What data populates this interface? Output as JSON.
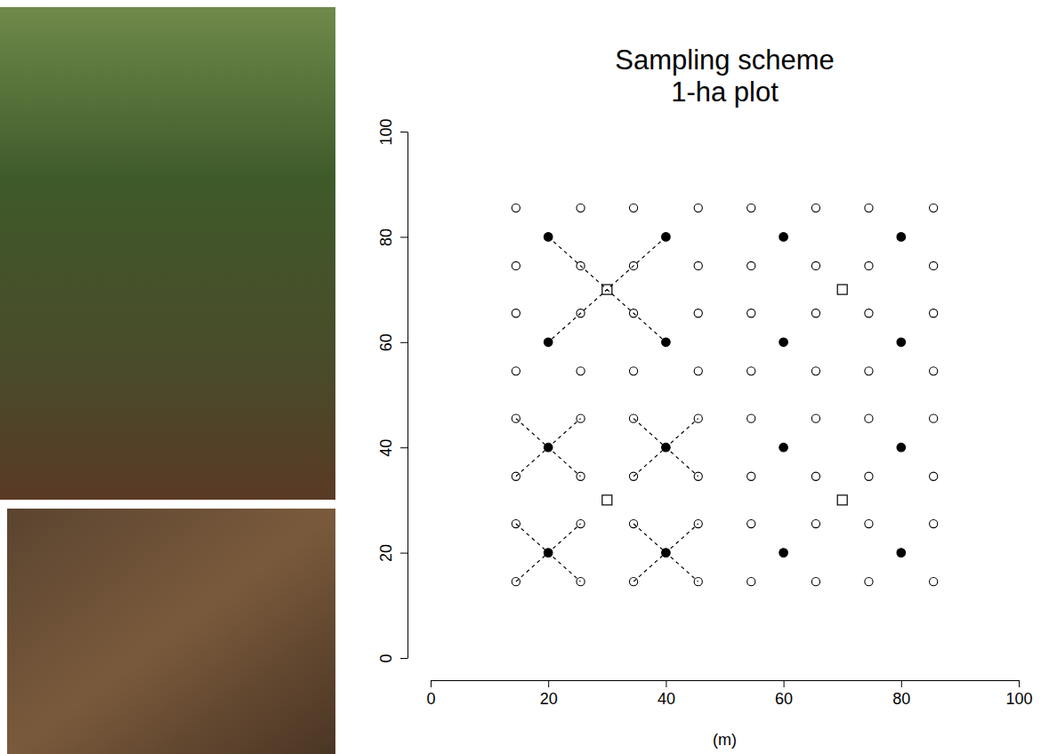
{
  "chart_data": {
    "type": "scatter",
    "title": "Sampling scheme",
    "subtitle": "1-ha plot",
    "x_label": "(m)",
    "xlim": [
      0,
      100
    ],
    "xticks": [
      0,
      20,
      40,
      60,
      80,
      100
    ],
    "ylim": [
      0,
      100
    ],
    "yticks": [
      0,
      20,
      40,
      60,
      80,
      100
    ],
    "grid": false,
    "series": [
      {
        "type": "line",
        "line_style": "dashed",
        "color": "#000000",
        "x": [
          20,
          40,
          null,
          40,
          20,
          null,
          14.5,
          25.5,
          null,
          14.5,
          25.5,
          null,
          34.5,
          45.5,
          null,
          34.5,
          45.5,
          null,
          14.5,
          25.5,
          null,
          14.5,
          25.5,
          null,
          34.5,
          45.5,
          null,
          34.5,
          45.5
        ],
        "values": [
          80,
          60,
          null,
          80,
          60,
          null,
          45.5,
          34.5,
          null,
          34.5,
          45.5,
          null,
          45.5,
          34.5,
          null,
          34.5,
          45.5,
          null,
          25.5,
          14.5,
          null,
          14.5,
          25.5,
          null,
          25.5,
          14.5,
          null,
          14.5,
          25.5
        ]
      },
      {
        "type": "scatter",
        "marker": "circle-open",
        "color": "#000000",
        "x": [
          14.5,
          25.5,
          34.5,
          45.5,
          54.5,
          65.5,
          74.5,
          85.5,
          14.5,
          25.5,
          34.5,
          45.5,
          54.5,
          65.5,
          74.5,
          85.5,
          14.5,
          25.5,
          34.5,
          45.5,
          54.5,
          65.5,
          74.5,
          85.5,
          14.5,
          25.5,
          34.5,
          45.5,
          54.5,
          65.5,
          74.5,
          85.5,
          14.5,
          25.5,
          34.5,
          45.5,
          54.5,
          65.5,
          74.5,
          85.5,
          14.5,
          25.5,
          34.5,
          45.5,
          54.5,
          65.5,
          74.5,
          85.5,
          14.5,
          25.5,
          34.5,
          45.5,
          54.5,
          65.5,
          74.5,
          85.5,
          14.5,
          25.5,
          34.5,
          45.5,
          54.5,
          65.5,
          74.5,
          85.5
        ],
        "values": [
          85.5,
          85.5,
          85.5,
          85.5,
          85.5,
          85.5,
          85.5,
          85.5,
          74.5,
          74.5,
          74.5,
          74.5,
          74.5,
          74.5,
          74.5,
          74.5,
          65.5,
          65.5,
          65.5,
          65.5,
          65.5,
          65.5,
          65.5,
          65.5,
          54.5,
          54.5,
          54.5,
          54.5,
          54.5,
          54.5,
          54.5,
          54.5,
          45.5,
          45.5,
          45.5,
          45.5,
          45.5,
          45.5,
          45.5,
          45.5,
          34.5,
          34.5,
          34.5,
          34.5,
          34.5,
          34.5,
          34.5,
          34.5,
          25.5,
          25.5,
          25.5,
          25.5,
          25.5,
          25.5,
          25.5,
          25.5,
          14.5,
          14.5,
          14.5,
          14.5,
          14.5,
          14.5,
          14.5,
          14.5
        ]
      },
      {
        "type": "scatter",
        "marker": "circle",
        "color": "#000000",
        "x": [
          20,
          40,
          60,
          80,
          20,
          40,
          60,
          80,
          20,
          40,
          60,
          80,
          20,
          40,
          60,
          80
        ],
        "values": [
          80,
          80,
          80,
          80,
          60,
          60,
          60,
          60,
          40,
          40,
          40,
          40,
          20,
          20,
          20,
          20
        ]
      },
      {
        "type": "scatter",
        "marker": "square-open",
        "color": "#000000",
        "x": [
          30,
          70,
          30,
          70
        ],
        "values": [
          70,
          70,
          30,
          30
        ]
      }
    ]
  }
}
